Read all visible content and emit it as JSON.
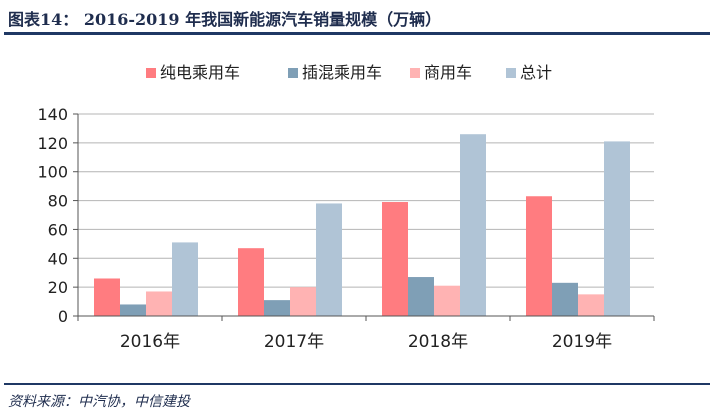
{
  "header": {
    "title": "图表14：   2016-2019 年我国新能源汽车销量规模（万辆）"
  },
  "footer": {
    "source": "资料来源：中汽协，中信建投"
  },
  "chart_data": {
    "type": "bar",
    "categories": [
      "2016年",
      "2017年",
      "2018年",
      "2019年"
    ],
    "series": [
      {
        "name": "纯电乘用车",
        "color": "#ff7c80",
        "values": [
          26,
          47,
          79,
          83
        ]
      },
      {
        "name": "插混乘用车",
        "color": "#7f9fb6",
        "values": [
          8,
          11,
          27,
          23
        ]
      },
      {
        "name": "商用车",
        "color": "#ffb3b3",
        "values": [
          17,
          20,
          21,
          15
        ]
      },
      {
        "name": "总计",
        "color": "#b0c4d6",
        "values": [
          51,
          78,
          126,
          121
        ]
      }
    ],
    "ylim": [
      0,
      140
    ],
    "yticks": [
      0,
      20,
      40,
      60,
      80,
      100,
      120,
      140
    ],
    "grid": true,
    "legend": "top"
  }
}
